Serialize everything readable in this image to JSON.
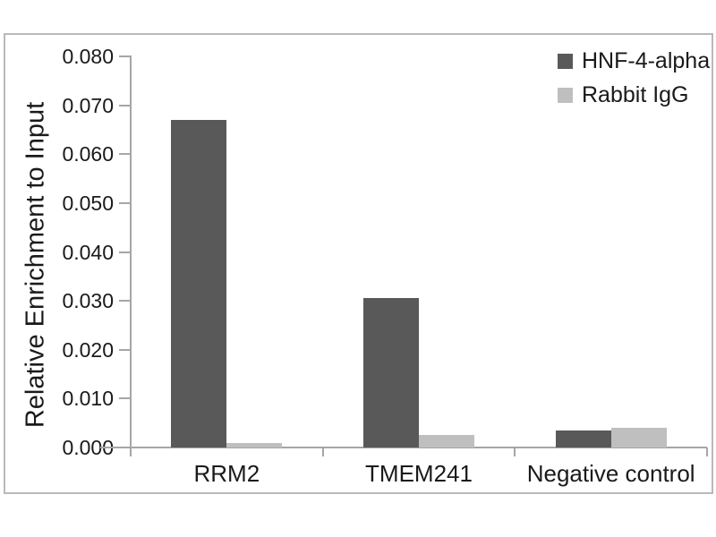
{
  "chart_data": {
    "type": "bar",
    "title": "",
    "xlabel": "",
    "ylabel": "Relative Enrichment to Input",
    "categories": [
      "RRM2",
      "TMEM241",
      "Negative control"
    ],
    "series": [
      {
        "name": "HNF-4-alpha",
        "color": "#595959",
        "values": [
          0.067,
          0.0305,
          0.0035
        ]
      },
      {
        "name": "Rabbit IgG",
        "color": "#bfbfbf",
        "values": [
          0.001,
          0.0025,
          0.004
        ]
      }
    ],
    "ylim": [
      0,
      0.08
    ],
    "ytick_step": 0.01,
    "ytick_labels": [
      "0.000",
      "0.010",
      "0.020",
      "0.030",
      "0.040",
      "0.050",
      "0.060",
      "0.070",
      "0.080"
    ],
    "grid": false,
    "legend_position": "top-right",
    "axis_color": "#a6a6a6",
    "text_color": "#1a1a1a",
    "frame_border_color": "#b9b9b9",
    "background_color": "#ffffff"
  }
}
